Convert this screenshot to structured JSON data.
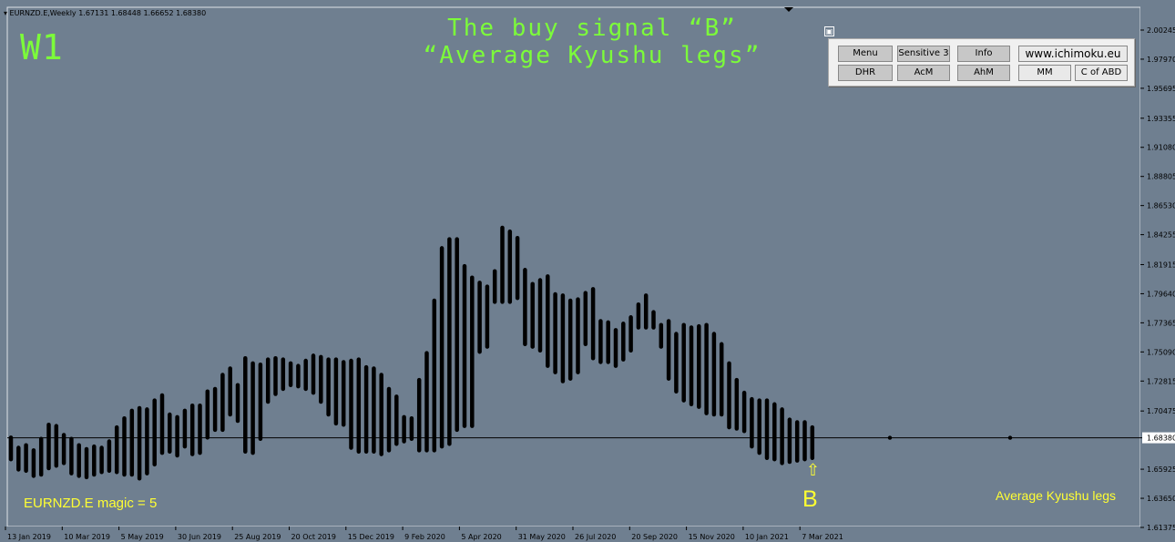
{
  "header": {
    "symbol_info": "▾ EURNZD.E,Weekly  1.67131 1.68448 1.66652 1.68380"
  },
  "timeframe_label": "W1",
  "title": {
    "line1": "The buy signal “B”",
    "line2": "“Average Kyushu legs”"
  },
  "panel": {
    "pin_icon": "pin-icon",
    "row1": [
      "Menu",
      "Sensitive 3",
      "Info",
      "www.ichimoku.eu"
    ],
    "row2": [
      "DHR",
      "AcM",
      "AhM",
      "MM",
      "C of ABD"
    ]
  },
  "magic_label": "EURNZD.E  magic = 5",
  "indicator_label": "Average Kyushu legs",
  "signal": {
    "label": "B",
    "arrow": "⇧"
  },
  "colors": {
    "background": "#6f7f90",
    "bars": "#000000",
    "accent_green": "#7cfc3a",
    "signal_yellow": "#ffff33"
  },
  "current_price_tag": "1.68380",
  "chart_data": {
    "type": "bar",
    "ylim": [
      1.61375,
      2.00245
    ],
    "y_ticks": [
      "2.00245",
      "1.97970",
      "1.95695",
      "1.93355",
      "1.91080",
      "1.88805",
      "1.86530",
      "1.84255",
      "1.81915",
      "1.79640",
      "1.77365",
      "1.75090",
      "1.72815",
      "1.70475",
      "1.68380",
      "1.65925",
      "1.63650",
      "1.61375"
    ],
    "x_ticks": [
      "13 Jan 2019",
      "10 Mar 2019",
      "5 May 2019",
      "30 Jun 2019",
      "25 Aug 2019",
      "20 Oct 2019",
      "15 Dec 2019",
      "9 Feb 2020",
      "5 Apr 2020",
      "31 May 2020",
      "26 Jul 2020",
      "20 Sep 2020",
      "15 Nov 2020",
      "10 Jan 2021",
      "7 Mar 2021"
    ],
    "horizontal_line": 1.6838,
    "bars": [
      [
        1.684,
        1.667
      ],
      [
        1.676,
        1.659
      ],
      [
        1.678,
        1.658
      ],
      [
        1.674,
        1.654
      ],
      [
        1.683,
        1.655
      ],
      [
        1.694,
        1.66
      ],
      [
        1.693,
        1.662
      ],
      [
        1.686,
        1.664
      ],
      [
        1.683,
        1.656
      ],
      [
        1.678,
        1.654
      ],
      [
        1.675,
        1.653
      ],
      [
        1.677,
        1.655
      ],
      [
        1.676,
        1.657
      ],
      [
        1.681,
        1.658
      ],
      [
        1.692,
        1.657
      ],
      [
        1.699,
        1.655
      ],
      [
        1.705,
        1.655
      ],
      [
        1.707,
        1.652
      ],
      [
        1.706,
        1.656
      ],
      [
        1.713,
        1.663
      ],
      [
        1.717,
        1.672
      ],
      [
        1.702,
        1.673
      ],
      [
        1.7,
        1.67
      ],
      [
        1.705,
        1.677
      ],
      [
        1.709,
        1.671
      ],
      [
        1.709,
        1.672
      ],
      [
        1.72,
        1.684
      ],
      [
        1.722,
        1.69
      ],
      [
        1.733,
        1.69
      ],
      [
        1.738,
        1.702
      ],
      [
        1.725,
        1.697
      ],
      [
        1.746,
        1.673
      ],
      [
        1.742,
        1.672
      ],
      [
        1.741,
        1.683
      ],
      [
        1.745,
        1.712
      ],
      [
        1.746,
        1.718
      ],
      [
        1.745,
        1.722
      ],
      [
        1.742,
        1.725
      ],
      [
        1.74,
        1.724
      ],
      [
        1.744,
        1.722
      ],
      [
        1.748,
        1.719
      ],
      [
        1.747,
        1.712
      ],
      [
        1.745,
        1.702
      ],
      [
        1.745,
        1.695
      ],
      [
        1.743,
        1.694
      ],
      [
        1.744,
        1.676
      ],
      [
        1.745,
        1.673
      ],
      [
        1.739,
        1.673
      ],
      [
        1.738,
        1.673
      ],
      [
        1.733,
        1.671
      ],
      [
        1.722,
        1.674
      ],
      [
        1.716,
        1.679
      ],
      [
        1.7,
        1.681
      ],
      [
        1.699,
        1.683
      ],
      [
        1.729,
        1.674
      ],
      [
        1.75,
        1.674
      ],
      [
        1.791,
        1.674
      ],
      [
        1.832,
        1.677
      ],
      [
        1.839,
        1.679
      ],
      [
        1.839,
        1.69
      ],
      [
        1.818,
        1.693
      ],
      [
        1.809,
        1.693
      ],
      [
        1.805,
        1.751
      ],
      [
        1.802,
        1.755
      ],
      [
        1.814,
        1.79
      ],
      [
        1.848,
        1.79
      ],
      [
        1.845,
        1.79
      ],
      [
        1.84,
        1.793
      ],
      [
        1.815,
        1.757
      ],
      [
        1.804,
        1.755
      ],
      [
        1.807,
        1.752
      ],
      [
        1.81,
        1.74
      ],
      [
        1.796,
        1.735
      ],
      [
        1.795,
        1.728
      ],
      [
        1.791,
        1.73
      ],
      [
        1.792,
        1.735
      ],
      [
        1.797,
        1.757
      ],
      [
        1.8,
        1.746
      ],
      [
        1.775,
        1.743
      ],
      [
        1.774,
        1.743
      ],
      [
        1.768,
        1.74
      ],
      [
        1.773,
        1.745
      ],
      [
        1.778,
        1.752
      ],
      [
        1.788,
        1.77
      ],
      [
        1.795,
        1.77
      ],
      [
        1.782,
        1.77
      ],
      [
        1.772,
        1.755
      ],
      [
        1.775,
        1.73
      ],
      [
        1.765,
        1.72
      ],
      [
        1.772,
        1.713
      ],
      [
        1.77,
        1.71
      ],
      [
        1.771,
        1.708
      ],
      [
        1.772,
        1.703
      ],
      [
        1.765,
        1.702
      ],
      [
        1.757,
        1.702
      ],
      [
        1.742,
        1.692
      ],
      [
        1.729,
        1.691
      ],
      [
        1.719,
        1.689
      ],
      [
        1.714,
        1.677
      ],
      [
        1.713,
        1.672
      ],
      [
        1.713,
        1.668
      ],
      [
        1.71,
        1.667
      ],
      [
        1.706,
        1.664
      ],
      [
        1.698,
        1.665
      ],
      [
        1.696,
        1.666
      ],
      [
        1.696,
        1.667
      ],
      [
        1.692,
        1.668
      ]
    ],
    "future_dots": [
      1.6838,
      1.6838
    ]
  }
}
